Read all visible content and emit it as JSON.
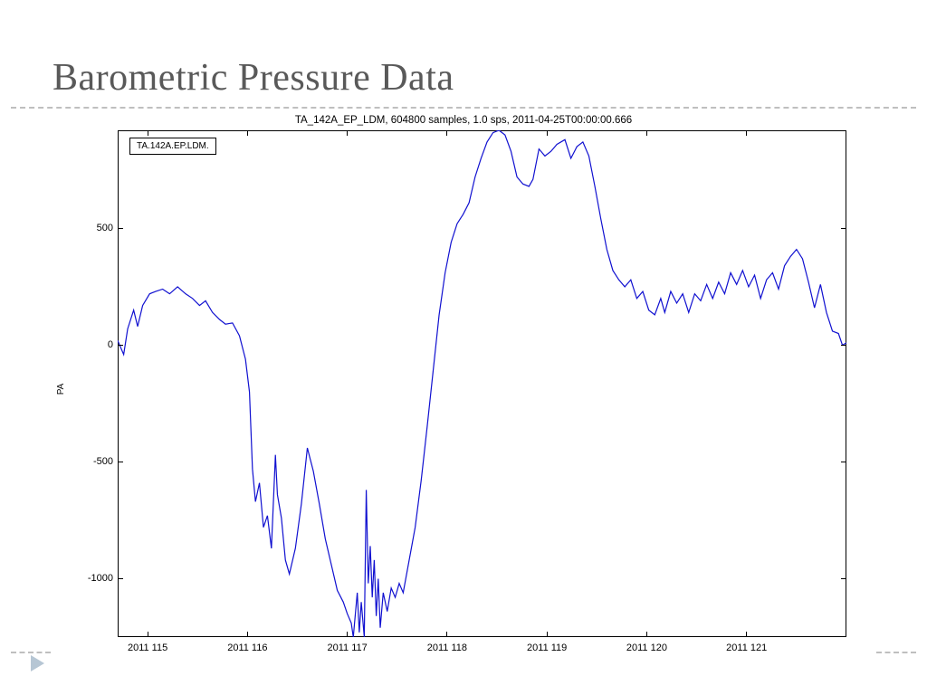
{
  "title": "Barometric Pressure Data",
  "subtitle": "TA_142A_EP_LDM, 604800 samples, 1.0 sps, 2011-04-25T00:00:00.666",
  "chart": {
    "type": "line",
    "legend_label": "TA.142A.EP.LDM.",
    "ylabel": "PA",
    "line_color": "#1010d0",
    "line_width": 1.2,
    "background_color": "#ffffff",
    "border_color": "#000000",
    "xlim": [
      114.7,
      122.0
    ],
    "ylim": [
      -1250,
      920
    ],
    "y_ticks": [
      -1000,
      -500,
      0,
      500
    ],
    "x_ticks": [
      115,
      116,
      117,
      118,
      119,
      120,
      121
    ],
    "x_tick_labels": [
      "2011 115",
      "2011 116",
      "2011 117",
      "2011 118",
      "2011 119",
      "2011 120",
      "2011 121"
    ],
    "tick_fontsize": 11,
    "label_fontsize": 10,
    "title_fontsize": 42,
    "title_color": "#595959",
    "subtitle_fontsize": 11.5,
    "rule_color": "#bfbfbf",
    "data": [
      [
        114.7,
        20
      ],
      [
        114.76,
        -40
      ],
      [
        114.8,
        70
      ],
      [
        114.86,
        150
      ],
      [
        114.9,
        80
      ],
      [
        114.95,
        170
      ],
      [
        115.02,
        220
      ],
      [
        115.08,
        230
      ],
      [
        115.15,
        240
      ],
      [
        115.22,
        220
      ],
      [
        115.3,
        250
      ],
      [
        115.38,
        220
      ],
      [
        115.45,
        200
      ],
      [
        115.52,
        170
      ],
      [
        115.58,
        190
      ],
      [
        115.65,
        140
      ],
      [
        115.72,
        110
      ],
      [
        115.78,
        90
      ],
      [
        115.85,
        95
      ],
      [
        115.92,
        40
      ],
      [
        115.98,
        -60
      ],
      [
        116.02,
        -200
      ],
      [
        116.05,
        -530
      ],
      [
        116.08,
        -670
      ],
      [
        116.12,
        -590
      ],
      [
        116.16,
        -780
      ],
      [
        116.2,
        -730
      ],
      [
        116.24,
        -870
      ],
      [
        116.28,
        -470
      ],
      [
        116.3,
        -640
      ],
      [
        116.34,
        -740
      ],
      [
        116.38,
        -920
      ],
      [
        116.42,
        -980
      ],
      [
        116.48,
        -870
      ],
      [
        116.54,
        -680
      ],
      [
        116.6,
        -440
      ],
      [
        116.66,
        -540
      ],
      [
        116.72,
        -680
      ],
      [
        116.78,
        -830
      ],
      [
        116.84,
        -940
      ],
      [
        116.9,
        -1050
      ],
      [
        116.96,
        -1100
      ],
      [
        117.0,
        -1150
      ],
      [
        117.04,
        -1190
      ],
      [
        117.06,
        -1250
      ],
      [
        117.1,
        -1060
      ],
      [
        117.12,
        -1230
      ],
      [
        117.14,
        -1100
      ],
      [
        117.17,
        -1250
      ],
      [
        117.19,
        -620
      ],
      [
        117.21,
        -1020
      ],
      [
        117.23,
        -860
      ],
      [
        117.25,
        -1080
      ],
      [
        117.27,
        -920
      ],
      [
        117.29,
        -1160
      ],
      [
        117.31,
        -1000
      ],
      [
        117.33,
        -1210
      ],
      [
        117.36,
        -1060
      ],
      [
        117.4,
        -1140
      ],
      [
        117.44,
        -1040
      ],
      [
        117.48,
        -1080
      ],
      [
        117.52,
        -1020
      ],
      [
        117.56,
        -1060
      ],
      [
        117.62,
        -920
      ],
      [
        117.68,
        -780
      ],
      [
        117.74,
        -580
      ],
      [
        117.8,
        -350
      ],
      [
        117.86,
        -110
      ],
      [
        117.92,
        130
      ],
      [
        117.98,
        310
      ],
      [
        118.04,
        440
      ],
      [
        118.1,
        520
      ],
      [
        118.16,
        560
      ],
      [
        118.22,
        610
      ],
      [
        118.28,
        720
      ],
      [
        118.34,
        800
      ],
      [
        118.4,
        870
      ],
      [
        118.46,
        910
      ],
      [
        118.52,
        920
      ],
      [
        118.58,
        900
      ],
      [
        118.64,
        830
      ],
      [
        118.7,
        720
      ],
      [
        118.76,
        690
      ],
      [
        118.82,
        680
      ],
      [
        118.86,
        710
      ],
      [
        118.92,
        840
      ],
      [
        118.98,
        810
      ],
      [
        119.04,
        830
      ],
      [
        119.1,
        860
      ],
      [
        119.18,
        880
      ],
      [
        119.24,
        800
      ],
      [
        119.3,
        850
      ],
      [
        119.36,
        870
      ],
      [
        119.42,
        810
      ],
      [
        119.48,
        680
      ],
      [
        119.54,
        540
      ],
      [
        119.6,
        410
      ],
      [
        119.66,
        320
      ],
      [
        119.72,
        280
      ],
      [
        119.78,
        250
      ],
      [
        119.84,
        280
      ],
      [
        119.9,
        200
      ],
      [
        119.96,
        230
      ],
      [
        120.02,
        150
      ],
      [
        120.08,
        130
      ],
      [
        120.14,
        200
      ],
      [
        120.18,
        140
      ],
      [
        120.24,
        230
      ],
      [
        120.3,
        180
      ],
      [
        120.36,
        220
      ],
      [
        120.42,
        140
      ],
      [
        120.48,
        220
      ],
      [
        120.54,
        190
      ],
      [
        120.6,
        260
      ],
      [
        120.66,
        200
      ],
      [
        120.72,
        270
      ],
      [
        120.78,
        220
      ],
      [
        120.84,
        310
      ],
      [
        120.9,
        260
      ],
      [
        120.96,
        320
      ],
      [
        121.02,
        250
      ],
      [
        121.08,
        300
      ],
      [
        121.14,
        200
      ],
      [
        121.2,
        280
      ],
      [
        121.26,
        310
      ],
      [
        121.32,
        240
      ],
      [
        121.38,
        340
      ],
      [
        121.44,
        380
      ],
      [
        121.5,
        410
      ],
      [
        121.56,
        370
      ],
      [
        121.62,
        270
      ],
      [
        121.68,
        160
      ],
      [
        121.74,
        260
      ],
      [
        121.8,
        140
      ],
      [
        121.86,
        60
      ],
      [
        121.92,
        50
      ],
      [
        121.96,
        0
      ],
      [
        122.0,
        10
      ]
    ]
  },
  "nav_arrow_color": "#b6c6d4"
}
